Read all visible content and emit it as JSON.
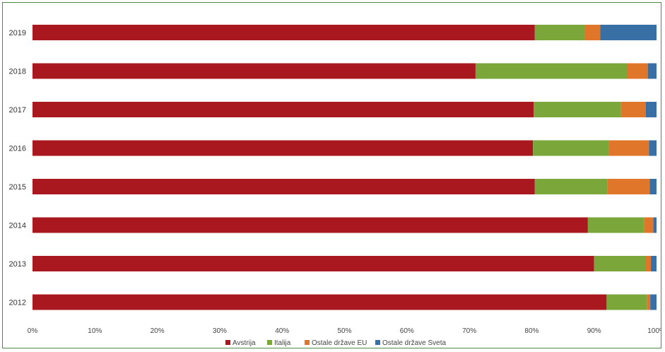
{
  "chart_data": {
    "type": "bar",
    "orientation": "horizontal",
    "stacked": true,
    "normalized": true,
    "categories": [
      "2019",
      "2018",
      "2017",
      "2016",
      "2015",
      "2014",
      "2013",
      "2012"
    ],
    "series": [
      {
        "name": "Avstrija",
        "color": "#a8181e",
        "values": [
          80.5,
          71,
          80.3,
          80.2,
          80.5,
          89,
          90,
          92
        ]
      },
      {
        "name": "Italija",
        "color": "#7aa63a",
        "values": [
          8,
          24.3,
          14,
          12.2,
          11.6,
          9,
          8.3,
          6.5
        ]
      },
      {
        "name": "Ostale države EU",
        "color": "#e0762a",
        "values": [
          2.5,
          3.3,
          4,
          6.4,
          6.8,
          1.5,
          0.8,
          0.5
        ]
      },
      {
        "name": "Ostale države Sveta",
        "color": "#386fa4",
        "values": [
          9,
          1.4,
          1.7,
          1.2,
          1.1,
          0.5,
          0.9,
          1
        ]
      }
    ],
    "xlim": [
      0,
      100
    ],
    "xticks": [
      "0%",
      "10%",
      "20%",
      "30%",
      "40%",
      "50%",
      "60%",
      "70%",
      "80%",
      "90%",
      "100%"
    ],
    "grid": false,
    "legend_position": "bottom"
  }
}
